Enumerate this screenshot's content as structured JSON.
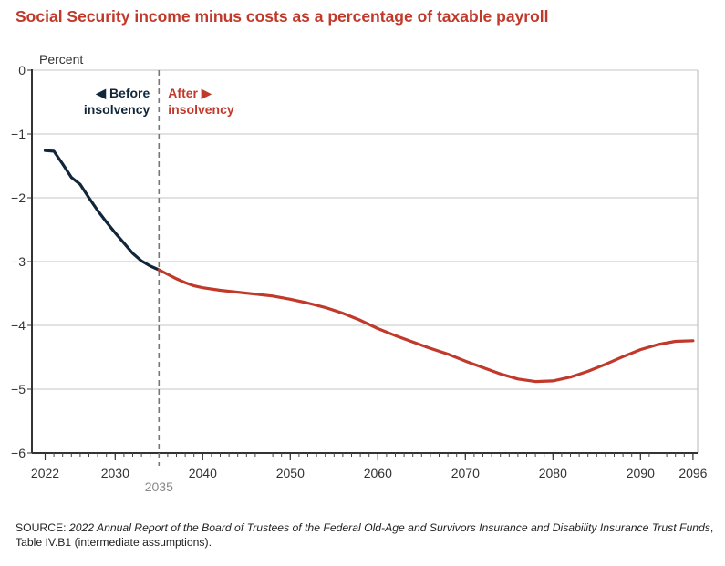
{
  "chart_data": {
    "type": "line",
    "title": "Social Security income minus costs as a percentage of taxable payroll",
    "ylabel": "Percent",
    "xlabel": "",
    "ylim": [
      -6,
      0
    ],
    "xlim": [
      2022,
      2096
    ],
    "yticks": [
      0,
      -1,
      -2,
      -3,
      -4,
      -5,
      -6
    ],
    "ytick_labels": [
      "0",
      "−1",
      "−2",
      "−3",
      "−4",
      "−5",
      "−6"
    ],
    "xticks": [
      2022,
      2030,
      2040,
      2050,
      2060,
      2070,
      2080,
      2090,
      2096
    ],
    "xtick_labels": [
      "2022",
      "2030",
      "2040",
      "2050",
      "2060",
      "2070",
      "2080",
      "2090",
      "2096"
    ],
    "grid": "horizontal",
    "marker_line": {
      "x": 2035,
      "label": "2035"
    },
    "annotations": {
      "before_line1": "◀ Before",
      "before_line2": "insolvency",
      "after_line1": "After ▶",
      "after_line2": "insolvency"
    },
    "series": [
      {
        "name": "Before insolvency",
        "color": "#12263a",
        "x": [
          2022,
          2023,
          2024,
          2025,
          2026,
          2027,
          2028,
          2029,
          2030,
          2031,
          2032,
          2033,
          2034,
          2035
        ],
        "values": [
          -1.26,
          -1.27,
          -1.47,
          -1.68,
          -1.79,
          -2.0,
          -2.2,
          -2.38,
          -2.55,
          -2.71,
          -2.87,
          -2.99,
          -3.07,
          -3.13
        ]
      },
      {
        "name": "After insolvency",
        "color": "#c0392b",
        "x": [
          2035,
          2036,
          2037,
          2038,
          2039,
          2040,
          2042,
          2044,
          2046,
          2048,
          2050,
          2052,
          2054,
          2056,
          2058,
          2060,
          2062,
          2064,
          2066,
          2068,
          2070,
          2072,
          2074,
          2076,
          2078,
          2080,
          2082,
          2084,
          2086,
          2088,
          2090,
          2092,
          2094,
          2096
        ],
        "values": [
          -3.13,
          -3.2,
          -3.27,
          -3.33,
          -3.38,
          -3.41,
          -3.45,
          -3.48,
          -3.51,
          -3.54,
          -3.59,
          -3.65,
          -3.72,
          -3.81,
          -3.92,
          -4.05,
          -4.16,
          -4.26,
          -4.36,
          -4.45,
          -4.56,
          -4.66,
          -4.76,
          -4.84,
          -4.88,
          -4.87,
          -4.81,
          -4.72,
          -4.61,
          -4.49,
          -4.38,
          -4.3,
          -4.25,
          -4.24
        ]
      }
    ]
  },
  "source": {
    "prefix": "SOURCE: ",
    "italic_title": "2022 Annual Report of the Board of Trustees of the Federal Old-Age and Survivors Insurance and Disability Insurance Trust Funds",
    "suffix": ", Table IV.B1 (intermediate assumptions)."
  }
}
